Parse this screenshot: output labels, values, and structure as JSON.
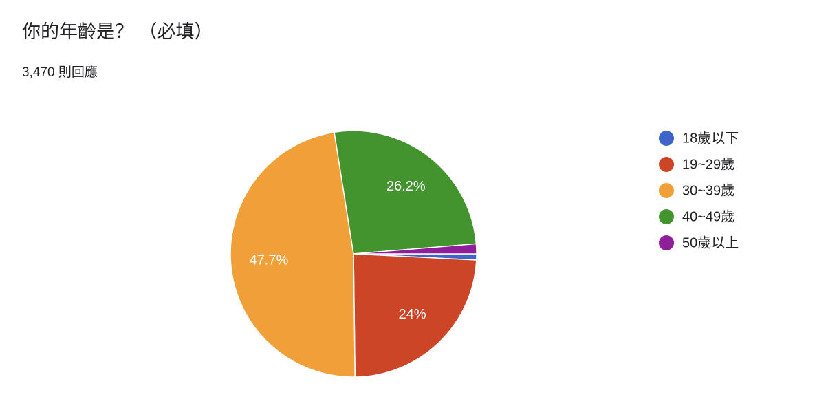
{
  "chart_data": {
    "type": "pie",
    "title": "你的年齡是？ （必填）",
    "subtitle": "3,470 則回應",
    "categories": [
      "18歲以下",
      "19~29歲",
      "30~39歲",
      "40~49歲",
      "50歲以上"
    ],
    "values": [
      0.8,
      24,
      47.7,
      26.2,
      1.3
    ],
    "value_labels": [
      null,
      "24%",
      "47.7%",
      "26.2%",
      null
    ],
    "colors": [
      "#3e64c9",
      "#cc4527",
      "#f19f38",
      "#43932f",
      "#8e1f98"
    ],
    "legend": "right"
  }
}
